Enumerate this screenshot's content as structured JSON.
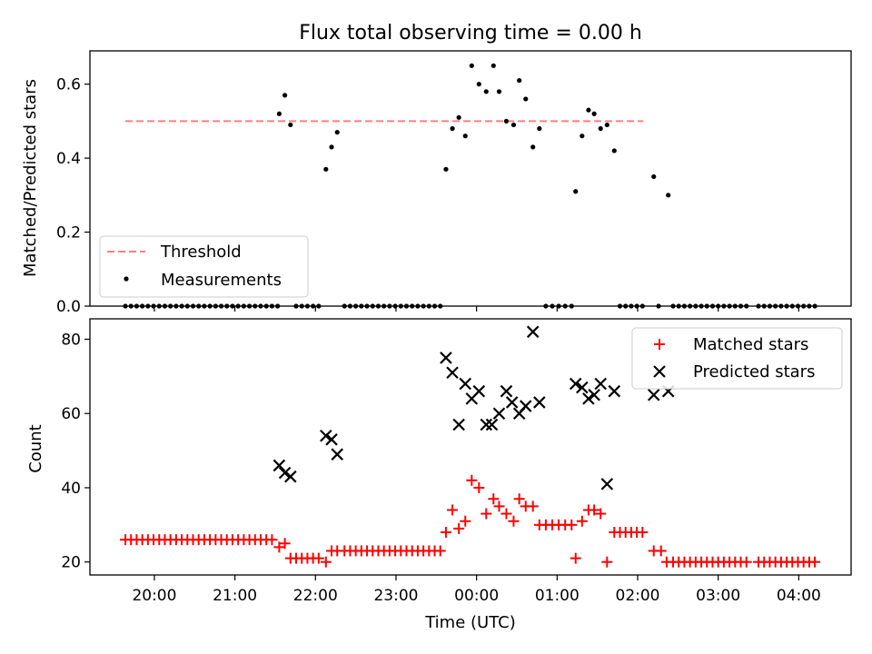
{
  "chart_data": [
    {
      "type": "scatter",
      "title": "Flux total observing time = 0.00 h",
      "xlabel": "",
      "ylabel": "Matched/Predicted stars",
      "ylim": [
        0,
        0.69
      ],
      "yticks": [
        "0.0",
        "0.2",
        "0.4",
        "0.6"
      ],
      "x_unit": "hours after 00:00 UTC (negative = previous day)",
      "legend_position": "lower-left",
      "legend": {
        "threshold": "Threshold",
        "measurements": "Measurements"
      },
      "threshold": {
        "value": 0.5,
        "x_range": [
          -4.36,
          2.07
        ],
        "color": "#ff7f7f"
      },
      "series": [
        {
          "name": "Measurements",
          "color": "#000000",
          "points": [
            [
              -4.36,
              0
            ],
            [
              -4.29,
              0
            ],
            [
              -4.22,
              0
            ],
            [
              -4.15,
              0
            ],
            [
              -4.08,
              0
            ],
            [
              -4.01,
              0
            ],
            [
              -3.94,
              0
            ],
            [
              -3.87,
              0
            ],
            [
              -3.8,
              0
            ],
            [
              -3.73,
              0
            ],
            [
              -3.66,
              0
            ],
            [
              -3.59,
              0
            ],
            [
              -3.52,
              0
            ],
            [
              -3.45,
              0
            ],
            [
              -3.38,
              0
            ],
            [
              -3.31,
              0
            ],
            [
              -3.24,
              0
            ],
            [
              -3.17,
              0
            ],
            [
              -3.1,
              0
            ],
            [
              -3.03,
              0
            ],
            [
              -2.96,
              0
            ],
            [
              -2.89,
              0
            ],
            [
              -2.82,
              0
            ],
            [
              -2.75,
              0
            ],
            [
              -2.68,
              0
            ],
            [
              -2.61,
              0
            ],
            [
              -2.54,
              0
            ],
            [
              -2.47,
              0
            ],
            [
              -2.45,
              0.52
            ],
            [
              -2.38,
              0.57
            ],
            [
              -2.31,
              0.49
            ],
            [
              -2.24,
              0
            ],
            [
              -2.17,
              0
            ],
            [
              -2.1,
              0
            ],
            [
              -2.03,
              0
            ],
            [
              -1.96,
              0
            ],
            [
              -1.87,
              0.37
            ],
            [
              -1.8,
              0.43
            ],
            [
              -1.73,
              0.47
            ],
            [
              -1.64,
              0
            ],
            [
              -1.57,
              0
            ],
            [
              -1.5,
              0
            ],
            [
              -1.43,
              0
            ],
            [
              -1.36,
              0
            ],
            [
              -1.29,
              0
            ],
            [
              -1.22,
              0
            ],
            [
              -1.15,
              0
            ],
            [
              -1.08,
              0
            ],
            [
              -1.01,
              0
            ],
            [
              -0.94,
              0
            ],
            [
              -0.87,
              0
            ],
            [
              -0.8,
              0
            ],
            [
              -0.73,
              0
            ],
            [
              -0.66,
              0
            ],
            [
              -0.59,
              0
            ],
            [
              -0.52,
              0
            ],
            [
              -0.45,
              0
            ],
            [
              -0.38,
              0.37
            ],
            [
              -0.3,
              0.48
            ],
            [
              -0.22,
              0.51
            ],
            [
              -0.14,
              0.46
            ],
            [
              -0.06,
              0.65
            ],
            [
              0.03,
              0.6
            ],
            [
              0.12,
              0.58
            ],
            [
              0.21,
              0.65
            ],
            [
              0.28,
              0.58
            ],
            [
              0.37,
              0.5
            ],
            [
              0.46,
              0.49
            ],
            [
              0.53,
              0.61
            ],
            [
              0.61,
              0.56
            ],
            [
              0.7,
              0.43
            ],
            [
              0.78,
              0.48
            ],
            [
              0.86,
              0
            ],
            [
              0.94,
              0
            ],
            [
              1.02,
              0
            ],
            [
              1.1,
              0
            ],
            [
              1.18,
              0
            ],
            [
              1.23,
              0.31
            ],
            [
              1.31,
              0.46
            ],
            [
              1.39,
              0.53
            ],
            [
              1.46,
              0.52
            ],
            [
              1.54,
              0.48
            ],
            [
              1.62,
              0.49
            ],
            [
              1.71,
              0.42
            ],
            [
              1.78,
              0
            ],
            [
              1.85,
              0
            ],
            [
              1.92,
              0
            ],
            [
              1.99,
              0
            ],
            [
              2.06,
              0
            ],
            [
              2.26,
              0
            ],
            [
              2.2,
              0.35
            ],
            [
              2.38,
              0.3
            ],
            [
              2.44,
              0
            ],
            [
              2.51,
              0
            ],
            [
              2.58,
              0
            ],
            [
              2.65,
              0
            ],
            [
              2.72,
              0
            ],
            [
              2.79,
              0
            ],
            [
              2.86,
              0
            ],
            [
              2.93,
              0
            ],
            [
              3.0,
              0
            ],
            [
              3.07,
              0
            ],
            [
              3.14,
              0
            ],
            [
              3.21,
              0
            ],
            [
              3.28,
              0
            ],
            [
              3.35,
              0
            ],
            [
              3.5,
              0
            ],
            [
              3.57,
              0
            ],
            [
              3.64,
              0
            ],
            [
              3.71,
              0
            ],
            [
              3.78,
              0
            ],
            [
              3.85,
              0
            ],
            [
              3.92,
              0
            ],
            [
              3.99,
              0
            ],
            [
              4.06,
              0
            ],
            [
              4.13,
              0
            ],
            [
              4.2,
              0
            ]
          ]
        }
      ]
    },
    {
      "type": "scatter",
      "title": "",
      "xlabel": "Time (UTC)",
      "ylabel": "Count",
      "ylim": [
        16.5,
        85.5
      ],
      "yticks": [
        "20",
        "40",
        "60",
        "80"
      ],
      "xlim": [
        -4.8,
        4.65
      ],
      "xticks": [
        {
          "hour": -4,
          "label": "20:00"
        },
        {
          "hour": -3,
          "label": "21:00"
        },
        {
          "hour": -2,
          "label": "22:00"
        },
        {
          "hour": -1,
          "label": "23:00"
        },
        {
          "hour": 0,
          "label": "00:00"
        },
        {
          "hour": 1,
          "label": "01:00"
        },
        {
          "hour": 2,
          "label": "02:00"
        },
        {
          "hour": 3,
          "label": "03:00"
        },
        {
          "hour": 4,
          "label": "04:00"
        }
      ],
      "legend_position": "top-right",
      "series": [
        {
          "name": "Matched stars",
          "marker": "plus",
          "color": "#ff0000",
          "points": [
            [
              -4.36,
              26
            ],
            [
              -4.29,
              26
            ],
            [
              -4.22,
              26
            ],
            [
              -4.15,
              26
            ],
            [
              -4.08,
              26
            ],
            [
              -4.01,
              26
            ],
            [
              -3.94,
              26
            ],
            [
              -3.87,
              26
            ],
            [
              -3.8,
              26
            ],
            [
              -3.73,
              26
            ],
            [
              -3.66,
              26
            ],
            [
              -3.59,
              26
            ],
            [
              -3.52,
              26
            ],
            [
              -3.45,
              26
            ],
            [
              -3.38,
              26
            ],
            [
              -3.31,
              26
            ],
            [
              -3.24,
              26
            ],
            [
              -3.17,
              26
            ],
            [
              -3.1,
              26
            ],
            [
              -3.03,
              26
            ],
            [
              -2.96,
              26
            ],
            [
              -2.89,
              26
            ],
            [
              -2.82,
              26
            ],
            [
              -2.75,
              26
            ],
            [
              -2.68,
              26
            ],
            [
              -2.61,
              26
            ],
            [
              -2.54,
              26
            ],
            [
              -2.45,
              24
            ],
            [
              -2.38,
              25
            ],
            [
              -2.31,
              21
            ],
            [
              -2.24,
              21
            ],
            [
              -2.17,
              21
            ],
            [
              -2.1,
              21
            ],
            [
              -2.03,
              21
            ],
            [
              -1.96,
              21
            ],
            [
              -1.87,
              20
            ],
            [
              -1.8,
              23
            ],
            [
              -1.73,
              23
            ],
            [
              -1.64,
              23
            ],
            [
              -1.57,
              23
            ],
            [
              -1.5,
              23
            ],
            [
              -1.43,
              23
            ],
            [
              -1.36,
              23
            ],
            [
              -1.29,
              23
            ],
            [
              -1.22,
              23
            ],
            [
              -1.15,
              23
            ],
            [
              -1.08,
              23
            ],
            [
              -1.01,
              23
            ],
            [
              -0.94,
              23
            ],
            [
              -0.87,
              23
            ],
            [
              -0.8,
              23
            ],
            [
              -0.73,
              23
            ],
            [
              -0.66,
              23
            ],
            [
              -0.59,
              23
            ],
            [
              -0.52,
              23
            ],
            [
              -0.45,
              23
            ],
            [
              -0.38,
              28
            ],
            [
              -0.3,
              34
            ],
            [
              -0.22,
              29
            ],
            [
              -0.14,
              31
            ],
            [
              -0.06,
              42
            ],
            [
              0.03,
              40
            ],
            [
              0.12,
              33
            ],
            [
              0.21,
              37
            ],
            [
              0.28,
              35
            ],
            [
              0.37,
              33
            ],
            [
              0.46,
              31
            ],
            [
              0.53,
              37
            ],
            [
              0.61,
              35
            ],
            [
              0.7,
              35
            ],
            [
              0.78,
              30
            ],
            [
              0.86,
              30
            ],
            [
              0.94,
              30
            ],
            [
              1.02,
              30
            ],
            [
              1.1,
              30
            ],
            [
              1.18,
              30
            ],
            [
              1.23,
              21
            ],
            [
              1.31,
              31
            ],
            [
              1.39,
              34
            ],
            [
              1.46,
              34
            ],
            [
              1.54,
              33
            ],
            [
              1.62,
              20
            ],
            [
              1.71,
              28
            ],
            [
              1.78,
              28
            ],
            [
              1.85,
              28
            ],
            [
              1.92,
              28
            ],
            [
              1.99,
              28
            ],
            [
              2.06,
              28
            ],
            [
              2.2,
              23
            ],
            [
              2.29,
              23
            ],
            [
              2.36,
              20
            ],
            [
              2.44,
              20
            ],
            [
              2.51,
              20
            ],
            [
              2.58,
              20
            ],
            [
              2.65,
              20
            ],
            [
              2.72,
              20
            ],
            [
              2.79,
              20
            ],
            [
              2.86,
              20
            ],
            [
              2.93,
              20
            ],
            [
              3.0,
              20
            ],
            [
              3.07,
              20
            ],
            [
              3.14,
              20
            ],
            [
              3.21,
              20
            ],
            [
              3.28,
              20
            ],
            [
              3.35,
              20
            ],
            [
              3.5,
              20
            ],
            [
              3.57,
              20
            ],
            [
              3.64,
              20
            ],
            [
              3.71,
              20
            ],
            [
              3.78,
              20
            ],
            [
              3.85,
              20
            ],
            [
              3.92,
              20
            ],
            [
              3.99,
              20
            ],
            [
              4.06,
              20
            ],
            [
              4.13,
              20
            ],
            [
              4.2,
              20
            ]
          ]
        },
        {
          "name": "Predicted stars",
          "marker": "x",
          "color": "#000000",
          "points": [
            [
              -2.45,
              46
            ],
            [
              -2.38,
              44
            ],
            [
              -2.31,
              43
            ],
            [
              -1.87,
              54
            ],
            [
              -1.8,
              53
            ],
            [
              -1.73,
              49
            ],
            [
              -0.38,
              75
            ],
            [
              -0.3,
              71
            ],
            [
              -0.22,
              57
            ],
            [
              -0.14,
              68
            ],
            [
              -0.06,
              64
            ],
            [
              0.03,
              66
            ],
            [
              0.12,
              57
            ],
            [
              0.19,
              57
            ],
            [
              0.28,
              60
            ],
            [
              0.37,
              66
            ],
            [
              0.44,
              63
            ],
            [
              0.53,
              60
            ],
            [
              0.61,
              62
            ],
            [
              0.7,
              82
            ],
            [
              0.78,
              63
            ],
            [
              1.23,
              68
            ],
            [
              1.31,
              67
            ],
            [
              1.39,
              64
            ],
            [
              1.46,
              65
            ],
            [
              1.54,
              68
            ],
            [
              1.62,
              41
            ],
            [
              1.71,
              66
            ],
            [
              2.2,
              65
            ],
            [
              2.38,
              66
            ]
          ]
        }
      ]
    }
  ]
}
